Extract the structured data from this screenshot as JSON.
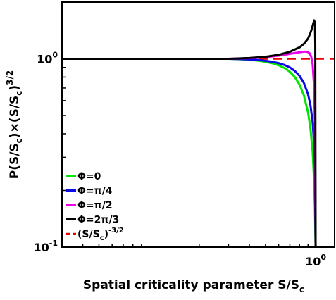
{
  "chart_data": {
    "type": "line",
    "title": "",
    "xlabel": "Spatial criticality parameter S/S",
    "xlabel_sub": "c",
    "ylabel": {
      "parts": [
        "P(S/S",
        "c",
        ")×(S/S",
        "c",
        ")",
        "3/2"
      ]
    },
    "x_scale": "log",
    "y_scale": "log",
    "xlim": [
      0.03,
      1.3
    ],
    "ylim": [
      0.1,
      2.0
    ],
    "grid": false,
    "legend_position": "lower-left",
    "y_ticks": [
      {
        "value": 0.1,
        "base": "10",
        "exp": "-1"
      },
      {
        "value": 1.0,
        "base": "10",
        "exp": "0"
      }
    ],
    "x_ticks": [
      {
        "value": 1.0,
        "base": "10",
        "exp": "0"
      }
    ],
    "series": [
      {
        "name": "Φ=0",
        "color": "#00e600",
        "x": [
          0.03,
          0.3,
          0.35,
          0.4,
          0.45,
          0.5,
          0.55,
          0.6,
          0.65,
          0.7,
          0.75,
          0.8,
          0.85,
          0.9,
          0.93,
          0.96,
          0.98,
          0.99,
          1.0
        ],
        "y": [
          1.0,
          1.0,
          0.995,
          0.988,
          0.978,
          0.965,
          0.947,
          0.924,
          0.893,
          0.853,
          0.8,
          0.73,
          0.64,
          0.52,
          0.43,
          0.32,
          0.22,
          0.16,
          0.1
        ]
      },
      {
        "name": "Φ=π/4",
        "color": "#0a0ae6",
        "x": [
          0.03,
          0.3,
          0.35,
          0.4,
          0.45,
          0.5,
          0.55,
          0.6,
          0.65,
          0.7,
          0.75,
          0.8,
          0.85,
          0.9,
          0.93,
          0.96,
          0.98,
          0.99,
          1.0
        ],
        "y": [
          1.0,
          1.0,
          0.997,
          0.992,
          0.985,
          0.976,
          0.964,
          0.948,
          0.927,
          0.9,
          0.862,
          0.812,
          0.745,
          0.65,
          0.57,
          0.46,
          0.35,
          0.27,
          0.1
        ]
      },
      {
        "name": "Φ=π/2",
        "color": "#ee00ee",
        "x": [
          0.03,
          0.3,
          0.4,
          0.5,
          0.6,
          0.7,
          0.78,
          0.85,
          0.89,
          0.92,
          0.94,
          0.96,
          0.98,
          0.99,
          1.0
        ],
        "y": [
          1.0,
          1.0,
          1.008,
          1.02,
          1.04,
          1.062,
          1.08,
          1.092,
          1.09,
          1.07,
          1.03,
          0.93,
          0.7,
          0.45,
          0.1
        ]
      },
      {
        "name": "Φ=2π/3",
        "color": "#000000",
        "x": [
          0.03,
          0.3,
          0.4,
          0.5,
          0.6,
          0.7,
          0.8,
          0.85,
          0.9,
          0.93,
          0.95,
          0.97,
          0.98,
          0.99,
          0.995,
          1.0
        ],
        "y": [
          1.0,
          1.0,
          1.01,
          1.025,
          1.05,
          1.09,
          1.15,
          1.2,
          1.28,
          1.37,
          1.45,
          1.55,
          1.6,
          1.55,
          1.2,
          0.1
        ]
      },
      {
        "name": "(S/S",
        "name_sub": "c",
        "name_tail": ")",
        "name_sup": "-3/2",
        "color": "#e60000",
        "dashed": true,
        "x": [
          0.03,
          1.3
        ],
        "y": [
          1.0,
          1.0
        ]
      }
    ]
  }
}
